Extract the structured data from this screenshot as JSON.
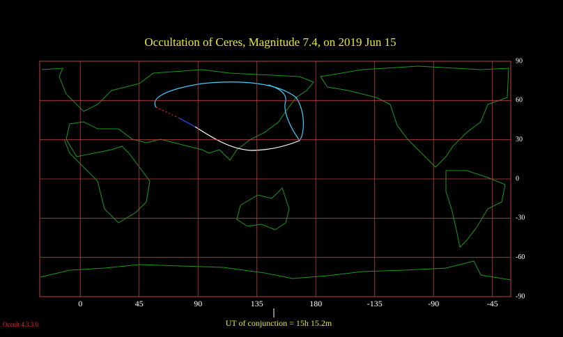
{
  "chart_data": {
    "type": "map",
    "title": "Occultation  of  Ceres,      Magnitude 7.4,    on  2019 Jun 15",
    "xlim": [
      -31,
      329
    ],
    "ylim": [
      -90,
      90
    ],
    "xticks": [
      0,
      45,
      90,
      135,
      180,
      {
        "value": 225,
        "label": "-135"
      },
      {
        "value": 270,
        "label": "-90"
      },
      {
        "value": 315,
        "label": "-45"
      }
    ],
    "yticks": [
      90,
      60,
      30,
      0,
      -30,
      -60,
      -90
    ],
    "grid": true,
    "grid_color": "#c04040",
    "conjunction": "UT of conjunction = 15h 15.2m",
    "version": "Occult 4.3.3.0"
  }
}
